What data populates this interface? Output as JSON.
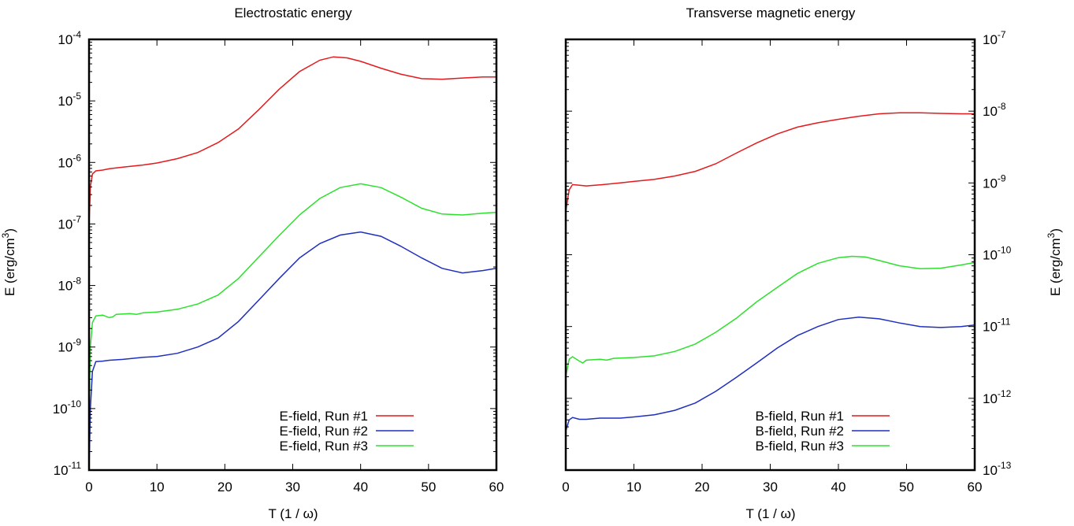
{
  "chart_data": [
    {
      "type": "line",
      "title": "Electrostatic energy",
      "xlabel": "T (1 / ω)",
      "ylabel_base": "E (erg/cm",
      "ylabel_exp": "3",
      "ylabel_close": ")",
      "yscale": "log",
      "xlim": [
        0,
        60
      ],
      "ylim_exp": [
        -11,
        -4
      ],
      "x_ticks": [
        0,
        10,
        20,
        30,
        40,
        50,
        60
      ],
      "y_tick_exps": [
        -11,
        -10,
        -9,
        -8,
        -7,
        -6,
        -5,
        -4
      ],
      "y_axis_side": "left",
      "grid": false,
      "legend_position": "bottom-right",
      "series": [
        {
          "name": "E-field, Run #1",
          "color": "#e41a1c",
          "points": [
            [
              0.0,
              1e-07
            ],
            [
              0.2,
              4e-07
            ],
            [
              0.5,
              6.5e-07
            ],
            [
              1,
              7.3e-07
            ],
            [
              2,
              7.5e-07
            ],
            [
              3,
              7.9e-07
            ],
            [
              5,
              8.4e-07
            ],
            [
              8,
              9.1e-07
            ],
            [
              10,
              9.8e-07
            ],
            [
              13,
              1.15e-06
            ],
            [
              16,
              1.45e-06
            ],
            [
              19,
              2.1e-06
            ],
            [
              22,
              3.5e-06
            ],
            [
              25,
              7.2e-06
            ],
            [
              28,
              1.55e-05
            ],
            [
              31,
              3e-05
            ],
            [
              34,
              4.6e-05
            ],
            [
              36,
              5.2e-05
            ],
            [
              38,
              5e-05
            ],
            [
              40,
              4.4e-05
            ],
            [
              43,
              3.4e-05
            ],
            [
              46,
              2.7e-05
            ],
            [
              49,
              2.3e-05
            ],
            [
              52,
              2.25e-05
            ],
            [
              55,
              2.35e-05
            ],
            [
              58,
              2.45e-05
            ],
            [
              60,
              2.45e-05
            ]
          ]
        },
        {
          "name": "E-field, Run #2",
          "color": "#1f2fbf",
          "points": [
            [
              0.0,
              1e-11
            ],
            [
              0.2,
              1e-10
            ],
            [
              0.5,
              4e-10
            ],
            [
              1,
              5.8e-10
            ],
            [
              2,
              5.9e-10
            ],
            [
              3,
              6.1e-10
            ],
            [
              5,
              6.3e-10
            ],
            [
              8,
              6.8e-10
            ],
            [
              10,
              7e-10
            ],
            [
              13,
              7.9e-10
            ],
            [
              16,
              1e-09
            ],
            [
              19,
              1.4e-09
            ],
            [
              22,
              2.6e-09
            ],
            [
              25,
              5.8e-09
            ],
            [
              28,
              1.3e-08
            ],
            [
              31,
              2.8e-08
            ],
            [
              34,
              4.8e-08
            ],
            [
              37,
              6.6e-08
            ],
            [
              40,
              7.4e-08
            ],
            [
              43,
              6.3e-08
            ],
            [
              46,
              4.3e-08
            ],
            [
              49,
              2.8e-08
            ],
            [
              52,
              1.9e-08
            ],
            [
              55,
              1.6e-08
            ],
            [
              58,
              1.75e-08
            ],
            [
              60,
              1.9e-08
            ]
          ]
        },
        {
          "name": "E-field, Run #3",
          "color": "#2ee02e",
          "points": [
            [
              0.0,
              1e-10
            ],
            [
              0.2,
              1e-09
            ],
            [
              0.5,
              2.5e-09
            ],
            [
              1,
              3.2e-09
            ],
            [
              2,
              3.3e-09
            ],
            [
              3,
              3e-09
            ],
            [
              3.5,
              3.1e-09
            ],
            [
              4,
              3.4e-09
            ],
            [
              6,
              3.5e-09
            ],
            [
              7,
              3.4e-09
            ],
            [
              8,
              3.6e-09
            ],
            [
              10,
              3.7e-09
            ],
            [
              13,
              4.1e-09
            ],
            [
              16,
              5e-09
            ],
            [
              19,
              7e-09
            ],
            [
              22,
              1.3e-08
            ],
            [
              25,
              2.9e-08
            ],
            [
              28,
              6.5e-08
            ],
            [
              31,
              1.4e-07
            ],
            [
              34,
              2.6e-07
            ],
            [
              37,
              3.9e-07
            ],
            [
              40,
              4.5e-07
            ],
            [
              43,
              3.9e-07
            ],
            [
              46,
              2.7e-07
            ],
            [
              49,
              1.8e-07
            ],
            [
              52,
              1.45e-07
            ],
            [
              55,
              1.4e-07
            ],
            [
              58,
              1.5e-07
            ],
            [
              60,
              1.55e-07
            ]
          ]
        }
      ]
    },
    {
      "type": "line",
      "title": "Transverse magnetic energy",
      "xlabel": "T (1 / ω)",
      "ylabel_base": "E (erg/cm",
      "ylabel_exp": "3",
      "ylabel_close": ")",
      "yscale": "log",
      "xlim": [
        0,
        60
      ],
      "ylim_exp": [
        -13,
        -7
      ],
      "x_ticks": [
        0,
        10,
        20,
        30,
        40,
        50,
        60
      ],
      "y_tick_exps": [
        -13,
        -12,
        -11,
        -10,
        -9,
        -8,
        -7
      ],
      "y_axis_side": "right",
      "grid": false,
      "legend_position": "bottom-right",
      "series": [
        {
          "name": "B-field, Run #1",
          "color": "#e41a1c",
          "points": [
            [
              0.0,
              4e-10
            ],
            [
              0.5,
              8e-10
            ],
            [
              1,
              9.5e-10
            ],
            [
              2,
              9.3e-10
            ],
            [
              3,
              9.1e-10
            ],
            [
              5,
              9.4e-10
            ],
            [
              8,
              1e-09
            ],
            [
              10,
              1.05e-09
            ],
            [
              13,
              1.12e-09
            ],
            [
              16,
              1.25e-09
            ],
            [
              19,
              1.45e-09
            ],
            [
              22,
              1.85e-09
            ],
            [
              25,
              2.6e-09
            ],
            [
              28,
              3.6e-09
            ],
            [
              31,
              4.8e-09
            ],
            [
              34,
              6e-09
            ],
            [
              37,
              6.9e-09
            ],
            [
              40,
              7.7e-09
            ],
            [
              43,
              8.5e-09
            ],
            [
              46,
              9.2e-09
            ],
            [
              49,
              9.5e-09
            ],
            [
              52,
              9.5e-09
            ],
            [
              55,
              9.3e-09
            ],
            [
              58,
              9.2e-09
            ],
            [
              60,
              9.2e-09
            ]
          ]
        },
        {
          "name": "B-field, Run #2",
          "color": "#1f2fbf",
          "points": [
            [
              0.0,
              3.5e-13
            ],
            [
              0.5,
              5e-13
            ],
            [
              1,
              5.4e-13
            ],
            [
              2,
              5.1e-13
            ],
            [
              3,
              5.1e-13
            ],
            [
              5,
              5.3e-13
            ],
            [
              8,
              5.3e-13
            ],
            [
              10,
              5.5e-13
            ],
            [
              13,
              5.9e-13
            ],
            [
              16,
              6.8e-13
            ],
            [
              19,
              8.6e-13
            ],
            [
              22,
              1.25e-12
            ],
            [
              25,
              1.95e-12
            ],
            [
              28,
              3.1e-12
            ],
            [
              31,
              5e-12
            ],
            [
              34,
              7.5e-12
            ],
            [
              37,
              1e-11
            ],
            [
              40,
              1.25e-11
            ],
            [
              43,
              1.35e-11
            ],
            [
              46,
              1.28e-11
            ],
            [
              49,
              1.12e-11
            ],
            [
              52,
              1e-11
            ],
            [
              55,
              9.7e-12
            ],
            [
              58,
              1e-11
            ],
            [
              60,
              1.05e-11
            ]
          ]
        },
        {
          "name": "B-field, Run #3",
          "color": "#2ee02e",
          "points": [
            [
              0.0,
              2e-12
            ],
            [
              0.5,
              3.5e-12
            ],
            [
              1,
              3.8e-12
            ],
            [
              2,
              3.3e-12
            ],
            [
              2.5,
              3.1e-12
            ],
            [
              3,
              3.4e-12
            ],
            [
              5,
              3.5e-12
            ],
            [
              6,
              3.4e-12
            ],
            [
              7,
              3.6e-12
            ],
            [
              10,
              3.7e-12
            ],
            [
              13,
              3.9e-12
            ],
            [
              16,
              4.5e-12
            ],
            [
              19,
              5.7e-12
            ],
            [
              22,
              8.3e-12
            ],
            [
              25,
              1.3e-11
            ],
            [
              28,
              2.2e-11
            ],
            [
              31,
              3.5e-11
            ],
            [
              34,
              5.5e-11
            ],
            [
              37,
              7.6e-11
            ],
            [
              40,
              9.1e-11
            ],
            [
              42,
              9.5e-11
            ],
            [
              44,
              9.3e-11
            ],
            [
              46,
              8.3e-11
            ],
            [
              49,
              7e-11
            ],
            [
              52,
              6.4e-11
            ],
            [
              55,
              6.5e-11
            ],
            [
              58,
              7.2e-11
            ],
            [
              60,
              7.8e-11
            ]
          ]
        }
      ]
    }
  ]
}
